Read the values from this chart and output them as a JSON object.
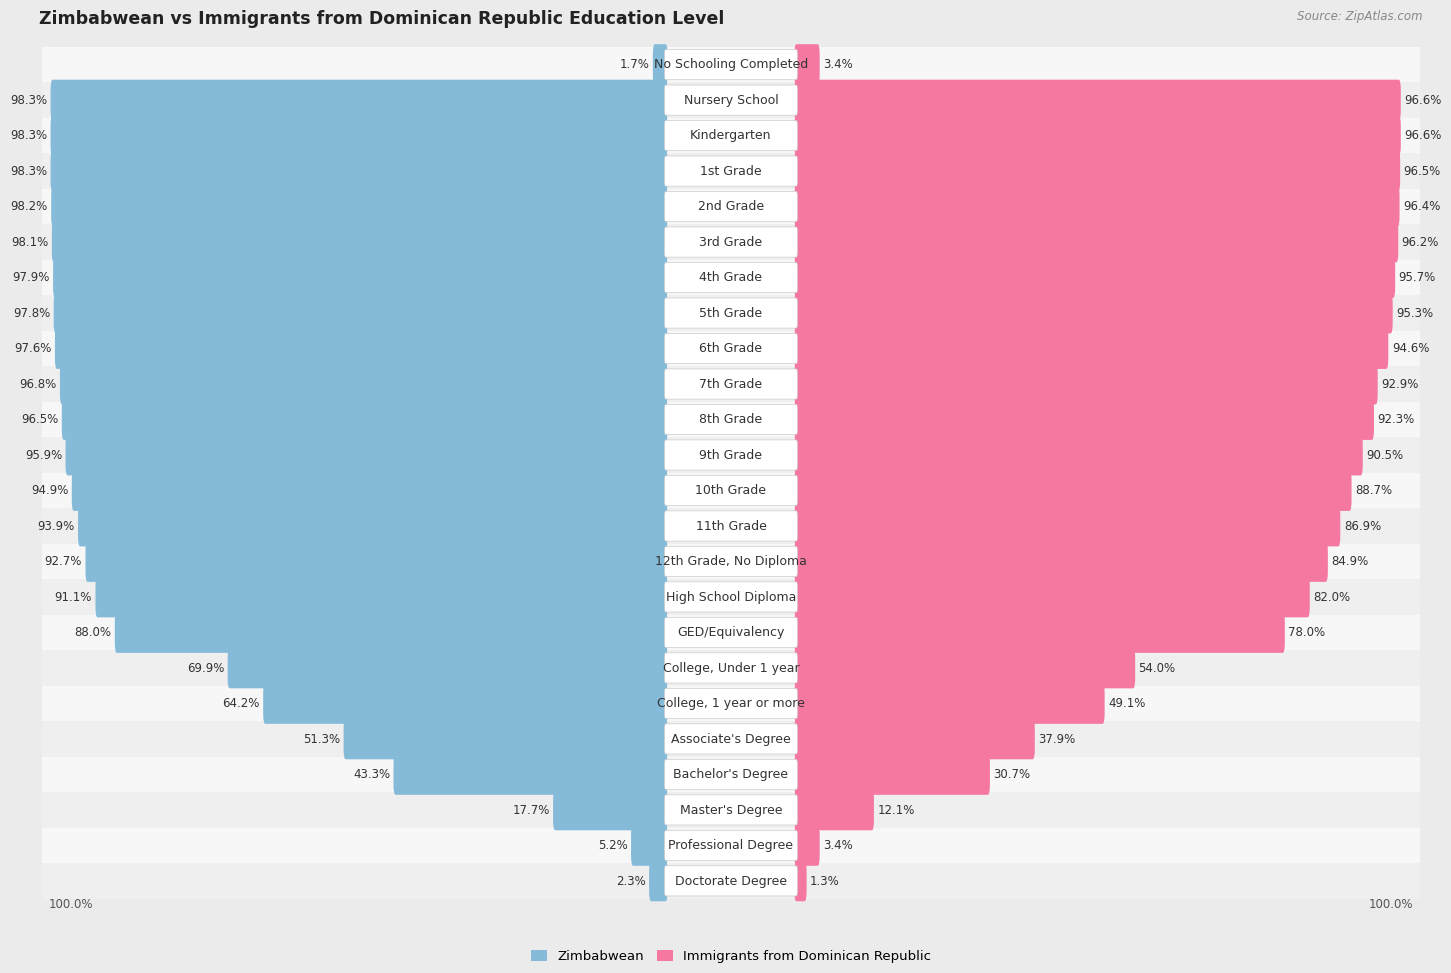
{
  "title": "Zimbabwean vs Immigrants from Dominican Republic Education Level",
  "source": "Source: ZipAtlas.com",
  "categories": [
    "No Schooling Completed",
    "Nursery School",
    "Kindergarten",
    "1st Grade",
    "2nd Grade",
    "3rd Grade",
    "4th Grade",
    "5th Grade",
    "6th Grade",
    "7th Grade",
    "8th Grade",
    "9th Grade",
    "10th Grade",
    "11th Grade",
    "12th Grade, No Diploma",
    "High School Diploma",
    "GED/Equivalency",
    "College, Under 1 year",
    "College, 1 year or more",
    "Associate's Degree",
    "Bachelor's Degree",
    "Master's Degree",
    "Professional Degree",
    "Doctorate Degree"
  ],
  "zimbabwean": [
    1.7,
    98.3,
    98.3,
    98.3,
    98.2,
    98.1,
    97.9,
    97.8,
    97.6,
    96.8,
    96.5,
    95.9,
    94.9,
    93.9,
    92.7,
    91.1,
    88.0,
    69.9,
    64.2,
    51.3,
    43.3,
    17.7,
    5.2,
    2.3
  ],
  "dominican": [
    3.4,
    96.6,
    96.6,
    96.5,
    96.4,
    96.2,
    95.7,
    95.3,
    94.6,
    92.9,
    92.3,
    90.5,
    88.7,
    86.9,
    84.9,
    82.0,
    78.0,
    54.0,
    49.1,
    37.9,
    30.7,
    12.1,
    3.4,
    1.3
  ],
  "blue_color": "#85BBD9",
  "pink_color": "#F478A0",
  "bg_color": "#EBEBEB",
  "row_bg_color": "#F7F7F7",
  "row_alt_color": "#EFEFEF",
  "bar_bg_color": "#FFFFFF",
  "title_fontsize": 12.5,
  "label_fontsize": 9.0,
  "value_fontsize": 8.5,
  "legend_fontsize": 9.5,
  "source_fontsize": 8.5
}
